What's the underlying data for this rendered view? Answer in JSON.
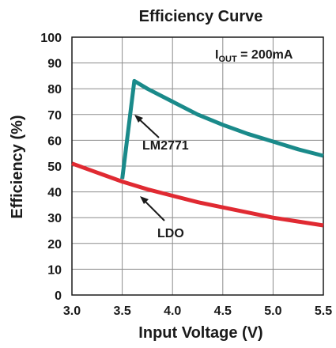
{
  "chart_data": {
    "type": "line",
    "title": "Efficiency Curve",
    "xlabel": "Input Voltage (V)",
    "ylabel": "Efficiency (%)",
    "xlim": [
      3.0,
      5.5
    ],
    "ylim": [
      0,
      100
    ],
    "x_ticks": [
      "3.0",
      "3.5",
      "4.0",
      "4.5",
      "5.0",
      "5.5"
    ],
    "y_ticks": [
      "0",
      "10",
      "20",
      "30",
      "40",
      "50",
      "60",
      "70",
      "80",
      "90",
      "100"
    ],
    "grid": true,
    "annotation": {
      "prefix": "I",
      "subscript": "OUT",
      "suffix": " = 200mA"
    },
    "series": [
      {
        "name": "LM2771",
        "color": "#1a8a8a",
        "x": [
          3.5,
          3.62,
          3.75,
          4.0,
          4.25,
          4.5,
          4.75,
          5.0,
          5.25,
          5.5
        ],
        "y": [
          45,
          83,
          80,
          75,
          70,
          66,
          62.5,
          59.5,
          56.5,
          54
        ]
      },
      {
        "name": "LDO",
        "color": "#e02a32",
        "x": [
          3.0,
          3.25,
          3.5,
          3.75,
          4.0,
          4.25,
          4.5,
          4.75,
          5.0,
          5.25,
          5.5
        ],
        "y": [
          51,
          47.5,
          44,
          41,
          38.5,
          36,
          34,
          32,
          30,
          28.5,
          27
        ]
      }
    ]
  }
}
